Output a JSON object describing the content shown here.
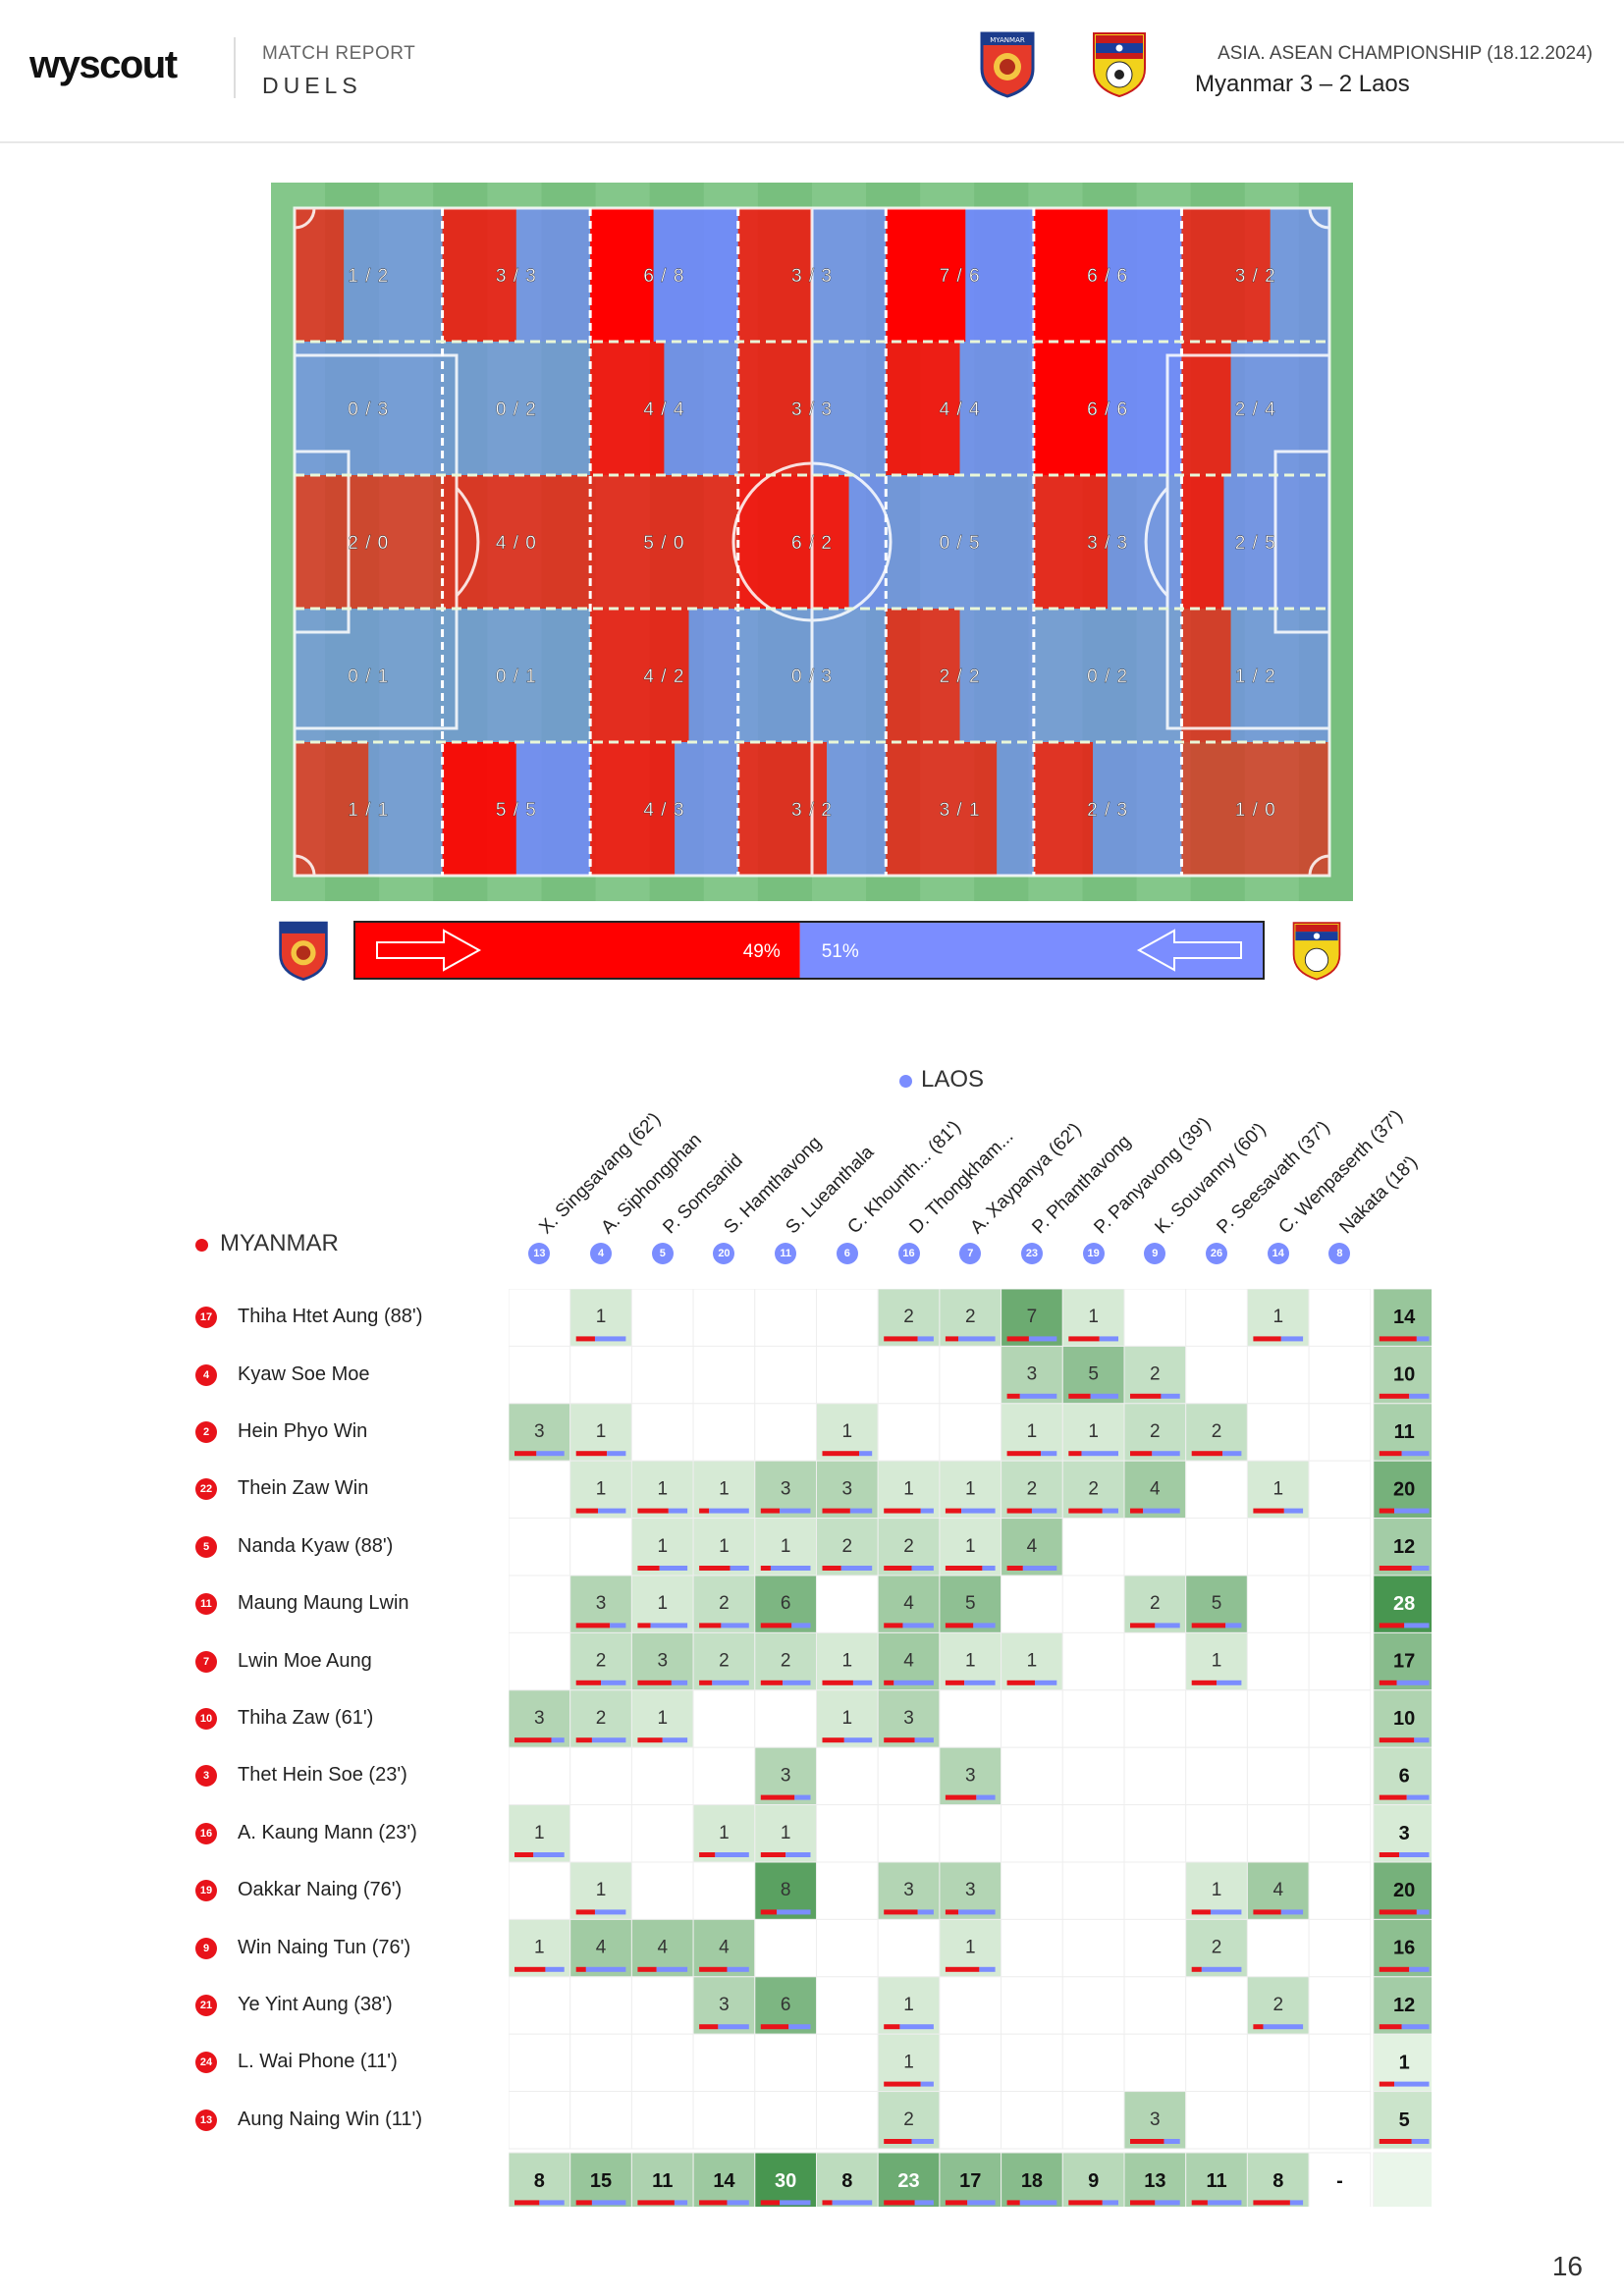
{
  "header": {
    "logo": "wyscout",
    "label": "MATCH REPORT",
    "subtitle": "DUELS",
    "competition": "ASIA. ASEAN CHAMPIONSHIP (18.12.2024)",
    "match": "Myanmar 3 – 2 Laos",
    "home_crest_text": "MYANMAR"
  },
  "colors": {
    "home": "#ff0000",
    "away": "#7b8dff",
    "pitch": "#7dc383"
  },
  "pitch_grid": [
    [
      "1 / 2",
      "3 / 3",
      "6 / 8",
      "3 / 3",
      "7 / 6",
      "6 / 6",
      "3 / 2"
    ],
    [
      "0 / 3",
      "0 / 2",
      "4 / 4",
      "3 / 3",
      "4 / 4",
      "6 / 6",
      "2 / 4"
    ],
    [
      "2 / 0",
      "4 / 0",
      "5 / 0",
      "6 / 2",
      "0 / 5",
      "3 / 3",
      "2 / 5"
    ],
    [
      "0 / 1",
      "0 / 1",
      "4 / 2",
      "0 / 3",
      "2 / 2",
      "0 / 2",
      "1 / 2"
    ],
    [
      "1 / 1",
      "5 / 5",
      "4 / 3",
      "3 / 2",
      "3 / 1",
      "2 / 3",
      "1 / 0"
    ]
  ],
  "share": {
    "home_label": "49%",
    "away_label": "51%",
    "home_value": 49,
    "away_value": 51
  },
  "away_team": {
    "name": "LAOS",
    "players": [
      {
        "num": "13",
        "name": "X. Singsavang (62')"
      },
      {
        "num": "4",
        "name": "A. Siphongphan"
      },
      {
        "num": "5",
        "name": "P. Somsanid"
      },
      {
        "num": "20",
        "name": "S. Hamthavong"
      },
      {
        "num": "11",
        "name": "S. Lueanthala"
      },
      {
        "num": "6",
        "name": "C. Khounth... (81')"
      },
      {
        "num": "16",
        "name": "D. Thongkham..."
      },
      {
        "num": "7",
        "name": "A. Xaypanya (62')"
      },
      {
        "num": "23",
        "name": "P. Phanthavong"
      },
      {
        "num": "19",
        "name": "P. Panyavong (39')"
      },
      {
        "num": "9",
        "name": "K. Souvanny (60')"
      },
      {
        "num": "26",
        "name": "P. Seesavath (37')"
      },
      {
        "num": "14",
        "name": "C. Wenpaserth (37')"
      },
      {
        "num": "8",
        "name": "Nakata (18')"
      }
    ]
  },
  "home_team": {
    "name": "MYANMAR",
    "players": [
      {
        "num": "17",
        "name": "Thiha Htet Aung (88')",
        "cells": [
          "",
          "1",
          "",
          "",
          "",
          "",
          "2",
          "2",
          "7",
          "1",
          "",
          "",
          "1",
          ""
        ],
        "total": "14"
      },
      {
        "num": "4",
        "name": "Kyaw Soe Moe",
        "cells": [
          "",
          "",
          "",
          "",
          "",
          "",
          "",
          "",
          "3",
          "5",
          "2",
          "",
          "",
          ""
        ],
        "total": "10"
      },
      {
        "num": "2",
        "name": "Hein Phyo Win",
        "cells": [
          "3",
          "1",
          "",
          "",
          "",
          "1",
          "",
          "",
          "1",
          "1",
          "2",
          "2",
          "",
          ""
        ],
        "total": "11"
      },
      {
        "num": "22",
        "name": "Thein Zaw Win",
        "cells": [
          "",
          "1",
          "1",
          "1",
          "3",
          "3",
          "1",
          "1",
          "2",
          "2",
          "4",
          "",
          "1",
          ""
        ],
        "total": "20"
      },
      {
        "num": "5",
        "name": "Nanda Kyaw (88')",
        "cells": [
          "",
          "",
          "1",
          "1",
          "1",
          "2",
          "2",
          "1",
          "4",
          "",
          "",
          "",
          "",
          ""
        ],
        "total": "12"
      },
      {
        "num": "11",
        "name": "Maung Maung Lwin",
        "cells": [
          "",
          "3",
          "1",
          "2",
          "6",
          "",
          "4",
          "5",
          "",
          "",
          "2",
          "5",
          "",
          ""
        ],
        "total": "28"
      },
      {
        "num": "7",
        "name": "Lwin Moe Aung",
        "cells": [
          "",
          "2",
          "3",
          "2",
          "2",
          "1",
          "4",
          "1",
          "1",
          "",
          "",
          "1",
          "",
          ""
        ],
        "total": "17"
      },
      {
        "num": "10",
        "name": "Thiha Zaw (61')",
        "cells": [
          "3",
          "2",
          "1",
          "",
          "",
          "1",
          "3",
          "",
          "",
          "",
          "",
          "",
          "",
          ""
        ],
        "total": "10"
      },
      {
        "num": "3",
        "name": "Thet Hein Soe (23')",
        "cells": [
          "",
          "",
          "",
          "",
          "3",
          "",
          "",
          "3",
          "",
          "",
          "",
          "",
          "",
          ""
        ],
        "total": "6"
      },
      {
        "num": "16",
        "name": "A. Kaung Mann (23')",
        "cells": [
          "1",
          "",
          "",
          "1",
          "1",
          "",
          "",
          "",
          "",
          "",
          "",
          "",
          "",
          ""
        ],
        "total": "3"
      },
      {
        "num": "19",
        "name": "Oakkar Naing (76')",
        "cells": [
          "",
          "1",
          "",
          "",
          "8",
          "",
          "3",
          "3",
          "",
          "",
          "",
          "1",
          "4",
          ""
        ],
        "total": "20"
      },
      {
        "num": "9",
        "name": "Win Naing Tun (76')",
        "cells": [
          "1",
          "4",
          "4",
          "4",
          "",
          "",
          "",
          "1",
          "",
          "",
          "",
          "2",
          "",
          ""
        ],
        "total": "16"
      },
      {
        "num": "21",
        "name": "Ye Yint Aung (38')",
        "cells": [
          "",
          "",
          "",
          "3",
          "6",
          "",
          "1",
          "",
          "",
          "",
          "",
          "",
          "2",
          ""
        ],
        "total": "12"
      },
      {
        "num": "24",
        "name": "L. Wai Phone (11')",
        "cells": [
          "",
          "",
          "",
          "",
          "",
          "",
          "1",
          "",
          "",
          "",
          "",
          "",
          "",
          ""
        ],
        "total": "1"
      },
      {
        "num": "13",
        "name": "Aung Naing Win (11')",
        "cells": [
          "",
          "",
          "",
          "",
          "",
          "",
          "2",
          "",
          "",
          "",
          "3",
          "",
          "",
          ""
        ],
        "total": "5"
      }
    ]
  },
  "column_totals": [
    "8",
    "15",
    "11",
    "14",
    "30",
    "8",
    "23",
    "17",
    "18",
    "9",
    "13",
    "11",
    "8",
    "-"
  ],
  "page_number": "16"
}
